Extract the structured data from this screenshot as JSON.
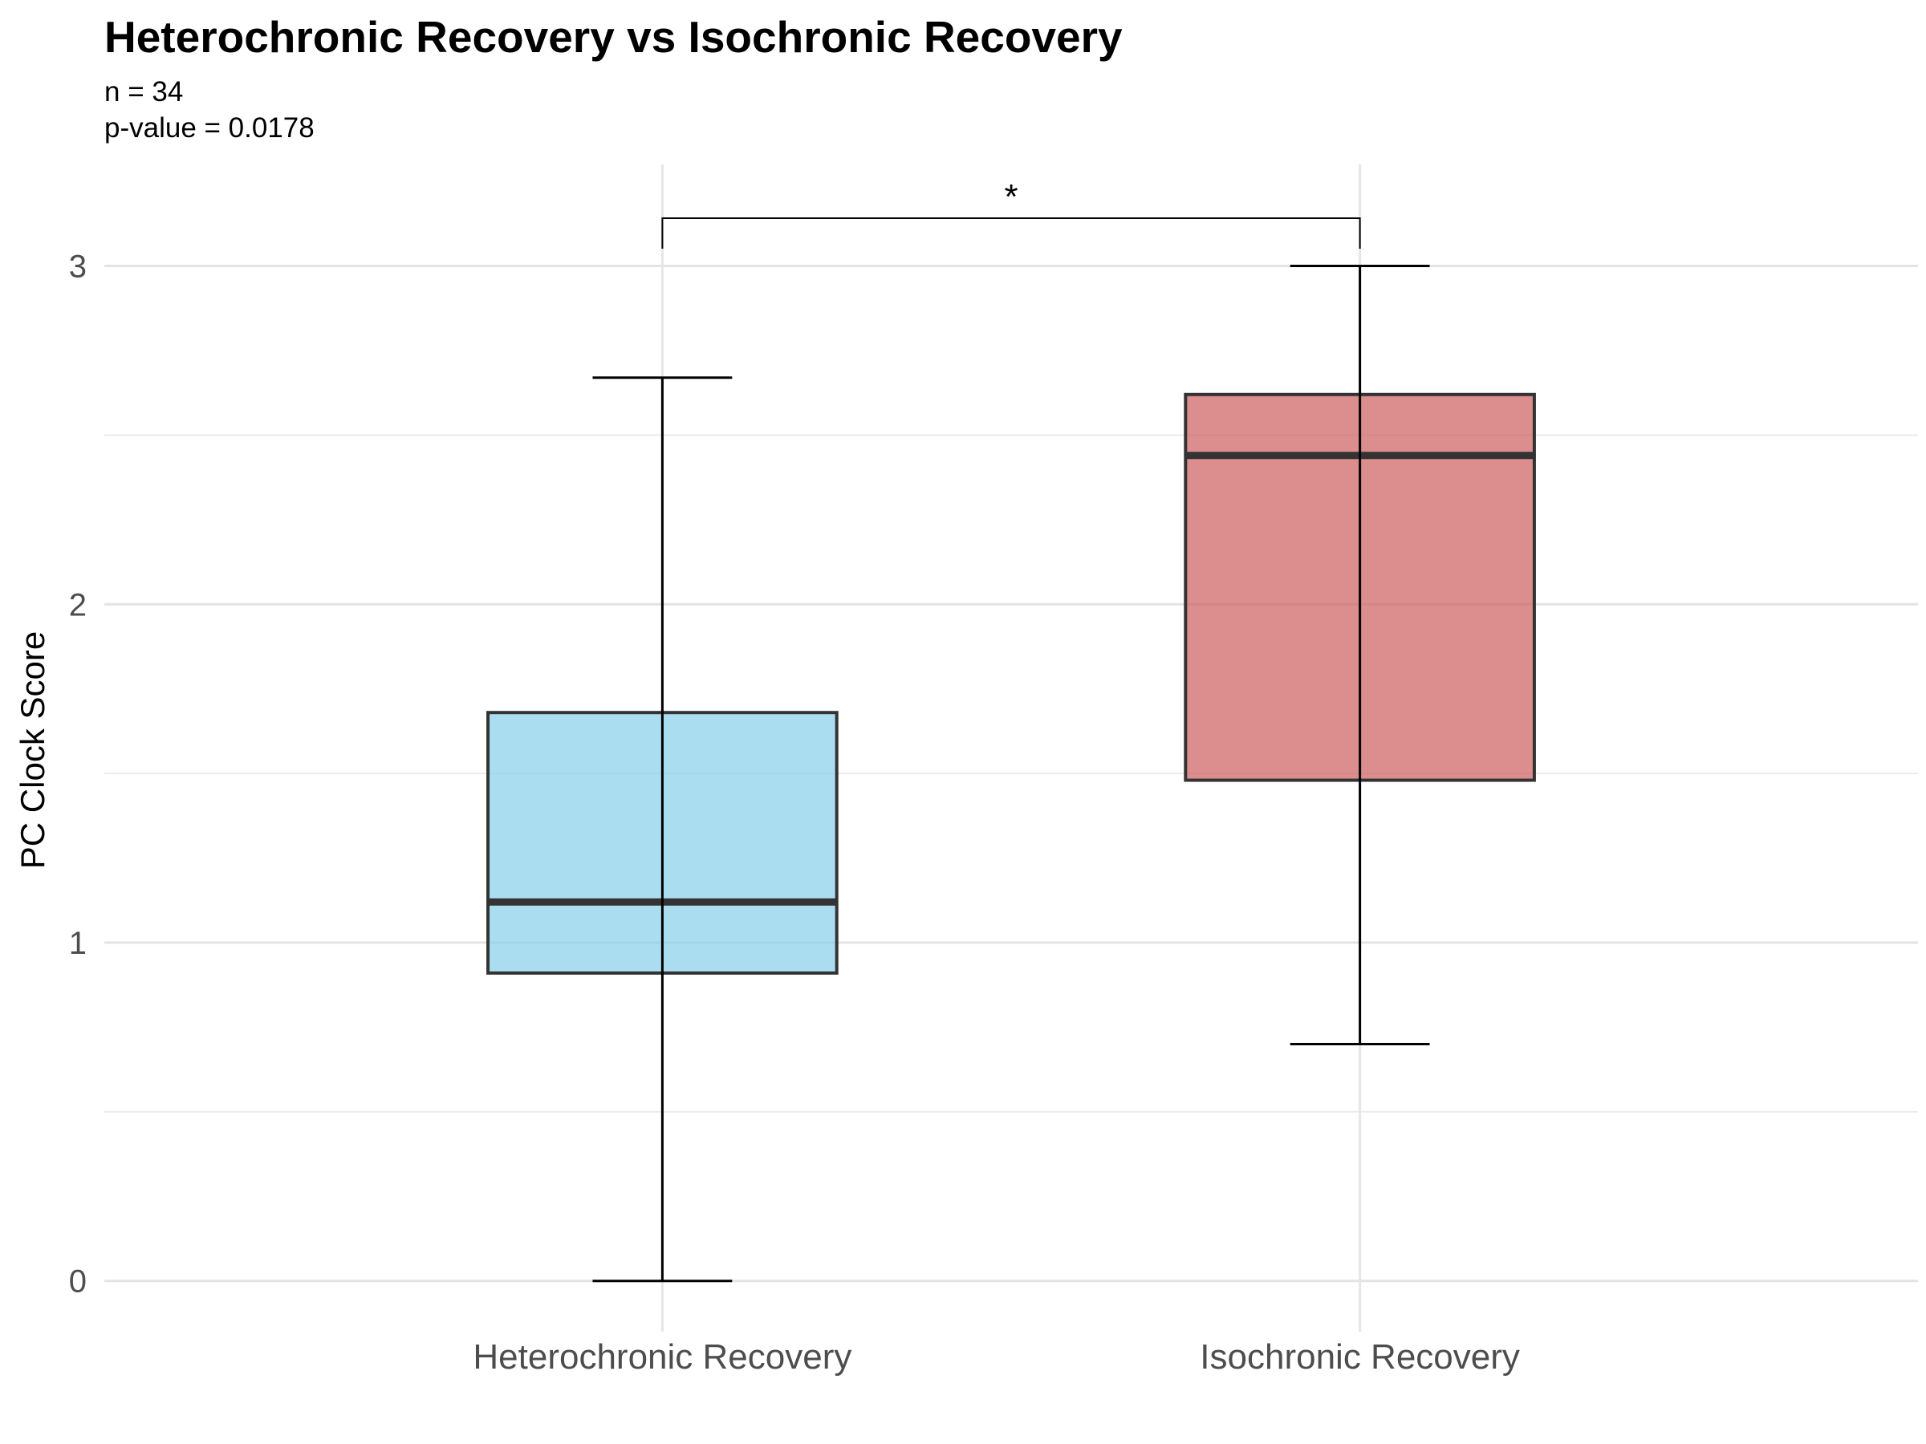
{
  "header": {
    "title": "Heterochronic Recovery vs Isochronic Recovery",
    "subtitle_n": "n = 34",
    "subtitle_p": "p-value = 0.0178"
  },
  "chart_data": {
    "type": "box",
    "title": "Heterochronic Recovery vs Isochronic Recovery",
    "subtitle": [
      "n = 34",
      "p-value = 0.0178"
    ],
    "xlabel": "",
    "ylabel": "PC Clock Score",
    "ylim": [
      -0.15,
      3.3
    ],
    "y_ticks": [
      0,
      1,
      2,
      3
    ],
    "y_tick_labels": [
      "0",
      "1",
      "2",
      "3"
    ],
    "grid": true,
    "categories": [
      "Heterochronic Recovery",
      "Isochronic Recovery"
    ],
    "boxes": [
      {
        "category": "Heterochronic Recovery",
        "min": 0.0,
        "q1": 0.91,
        "median": 1.12,
        "q3": 1.68,
        "max": 2.67,
        "color": "#87CEEB"
      },
      {
        "category": "Isochronic Recovery",
        "min": 0.7,
        "q1": 1.48,
        "median": 2.44,
        "q3": 2.62,
        "max": 3.0,
        "color": "#CD5C5C"
      }
    ],
    "significance": {
      "label": "*",
      "between": [
        "Heterochronic Recovery",
        "Isochronic Recovery"
      ]
    }
  }
}
